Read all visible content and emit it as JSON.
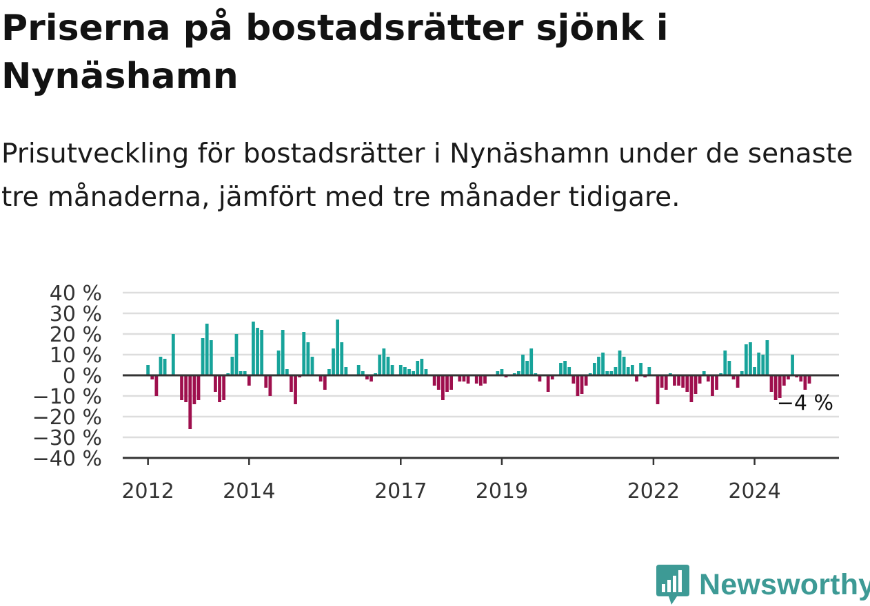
{
  "header": {
    "title": "Priserna på bostadsrätter sjönk i Nynäshamn",
    "subtitle": "Prisutveckling för bostadsrätter i Nynäshamn under de senaste tre månaderna, jämfört med tre månader tidigare."
  },
  "brand": {
    "name": "Newsworthy",
    "icon": "newsworthy-logo-icon",
    "color": "#3d9a95"
  },
  "colors": {
    "positive": "#17a39a",
    "negative": "#9e0f4d",
    "grid": "#dddddd",
    "axis": "#333333"
  },
  "chart_data": {
    "type": "bar",
    "ylim": [
      -40,
      40
    ],
    "xlim": [
      2011.5,
      2025.67
    ],
    "yticks": [
      40,
      30,
      20,
      10,
      0,
      -10,
      -20,
      -30,
      -40
    ],
    "ytick_labels": [
      "40 %",
      "30 %",
      "20 %",
      "10 %",
      "0 %",
      "−10 %",
      "−20 %",
      "−30 %",
      "−40 %"
    ],
    "xticks": [
      2012,
      2014,
      2017,
      2019,
      2022,
      2024
    ],
    "xtick_labels": [
      "2012",
      "2014",
      "2017",
      "2019",
      "2022",
      "2024"
    ],
    "start_year": 2012,
    "start_month": 1,
    "values": [
      5,
      -2,
      -10,
      9,
      8,
      0,
      20,
      0,
      -12,
      -13,
      -26,
      -14,
      -12,
      18,
      25,
      17,
      -8,
      -13,
      -12,
      1,
      9,
      20,
      2,
      2,
      -5,
      26,
      23,
      22,
      -6,
      -10,
      0,
      12,
      22,
      3,
      -8,
      -14,
      -1,
      21,
      16,
      9,
      0,
      -3,
      -7,
      3,
      13,
      27,
      16,
      4,
      0,
      0,
      5,
      2,
      -2,
      -3,
      1,
      10,
      13,
      9,
      5,
      0,
      5,
      4,
      3,
      2,
      7,
      8,
      3,
      0,
      -5,
      -7,
      -12,
      -8,
      -7,
      0,
      -3,
      -3,
      -4,
      0,
      -4,
      -5,
      -4,
      0,
      0,
      2,
      3,
      -1,
      0,
      1,
      2,
      10,
      7,
      13,
      1,
      -3,
      0,
      -8,
      -2,
      0,
      6,
      7,
      4,
      -4,
      -10,
      -9,
      -5,
      1,
      6,
      9,
      11,
      2,
      2,
      4,
      12,
      9,
      4,
      5,
      -3,
      6,
      -1,
      4,
      0,
      -14,
      -6,
      -7,
      1,
      -5,
      -5,
      -6,
      -8,
      -13,
      -9,
      -4,
      2,
      -3,
      -10,
      -7,
      1,
      12,
      7,
      -2,
      -6,
      2,
      15,
      16,
      4,
      11,
      10,
      17,
      -8,
      -12,
      -11,
      -5,
      -2,
      10,
      -1,
      -3,
      -7,
      -4
    ],
    "annotation": "−4 %"
  }
}
